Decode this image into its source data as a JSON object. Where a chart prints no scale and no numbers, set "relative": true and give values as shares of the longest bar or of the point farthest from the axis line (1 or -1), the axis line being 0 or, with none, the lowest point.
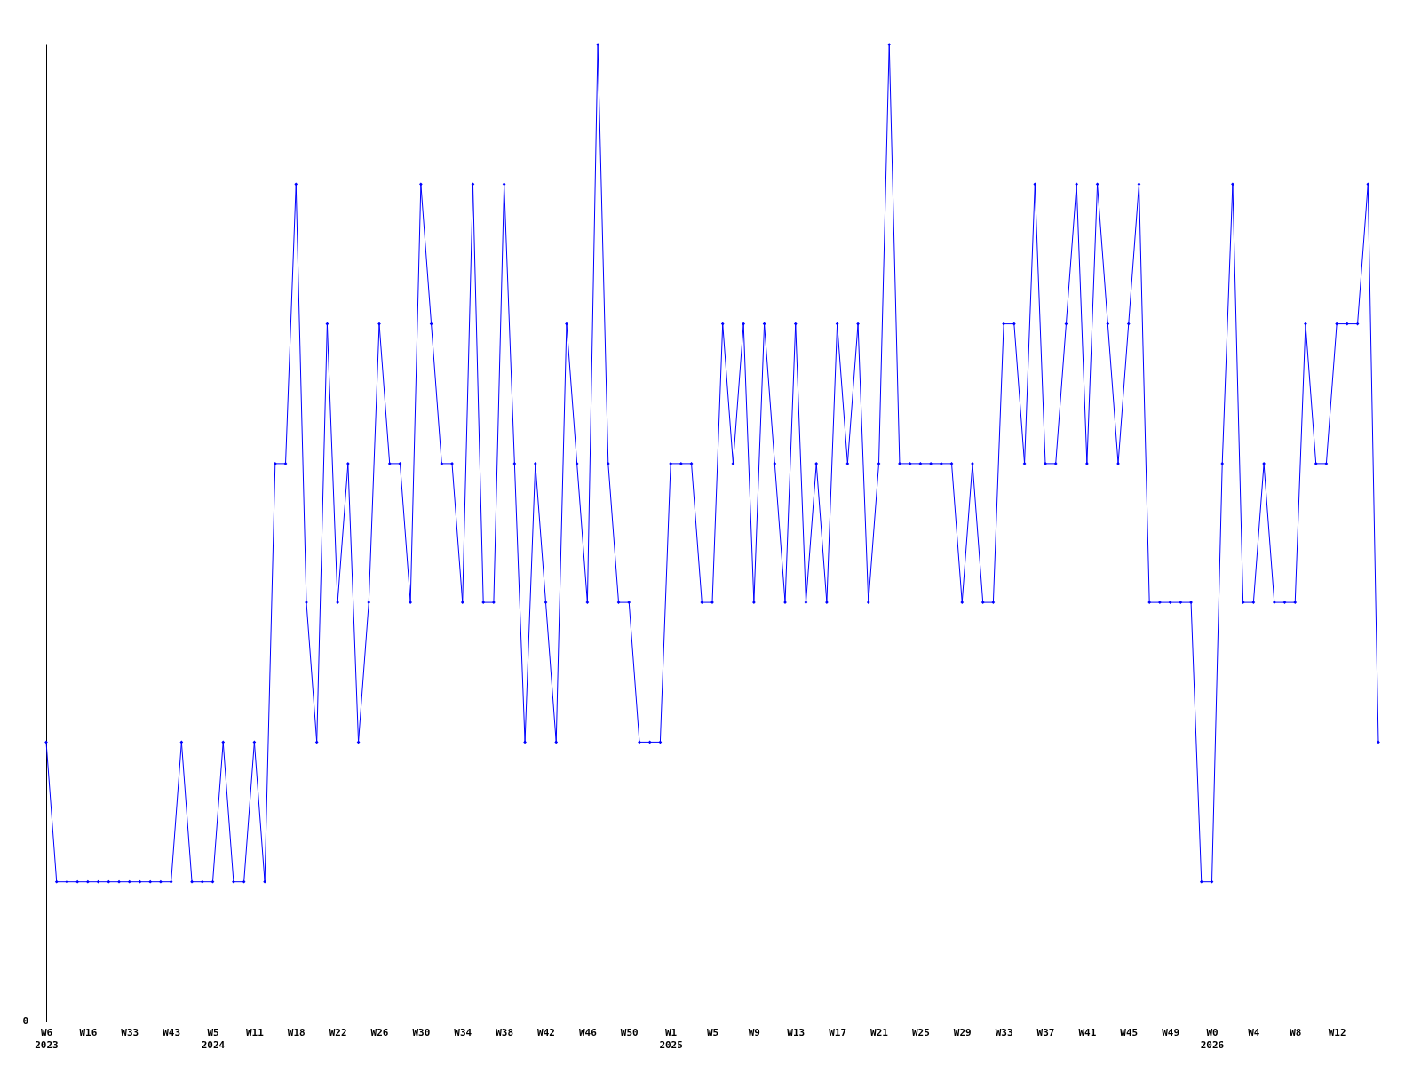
{
  "chart_data": {
    "type": "line",
    "relative": true,
    "color": "#0000ff",
    "marker": "diamond",
    "line_style": "solid",
    "grid": false,
    "annotations": [
      "0"
    ],
    "categories": [
      "W6\n2023",
      null,
      null,
      null,
      "W16",
      null,
      null,
      null,
      "W33",
      null,
      null,
      null,
      "W43",
      null,
      null,
      null,
      "W5\n2024",
      null,
      null,
      null,
      "W11",
      null,
      null,
      null,
      "W18",
      null,
      null,
      null,
      "W22",
      null,
      null,
      null,
      "W26",
      null,
      null,
      null,
      "W30",
      null,
      null,
      null,
      "W34",
      null,
      null,
      null,
      "W38",
      null,
      null,
      null,
      "W42",
      null,
      null,
      null,
      "W46",
      null,
      null,
      null,
      "W50",
      null,
      null,
      null,
      "W1\n2025",
      null,
      null,
      null,
      "W5",
      null,
      null,
      null,
      "W9",
      null,
      null,
      null,
      "W13",
      null,
      null,
      null,
      "W17",
      null,
      null,
      null,
      "W21",
      null,
      null,
      null,
      "W25",
      null,
      null,
      null,
      "W29",
      null,
      null,
      null,
      "W33",
      null,
      null,
      null,
      "W37",
      null,
      null,
      null,
      "W41",
      null,
      null,
      null,
      "W45",
      null,
      null,
      null,
      "W49",
      null,
      null,
      null,
      "W0\n2026",
      null,
      null,
      null,
      "W4",
      null,
      null,
      null,
      "W8",
      null,
      null,
      null,
      "W12",
      null,
      null,
      null,
      null
    ],
    "values": [
      0.286,
      0.143,
      0.143,
      0.143,
      0.143,
      0.143,
      0.143,
      0.143,
      0.143,
      0.143,
      0.143,
      0.143,
      0.143,
      0.286,
      0.143,
      0.143,
      0.143,
      0.286,
      0.143,
      0.143,
      0.286,
      0.143,
      0.571,
      0.571,
      0.857,
      0.429,
      0.286,
      0.714,
      0.429,
      0.571,
      0.286,
      0.429,
      0.714,
      0.571,
      0.571,
      0.429,
      0.857,
      0.714,
      0.571,
      0.571,
      0.429,
      0.857,
      0.429,
      0.429,
      0.857,
      0.571,
      0.286,
      0.571,
      0.429,
      0.286,
      0.714,
      0.571,
      0.429,
      1,
      0.571,
      0.429,
      0.429,
      0.286,
      0.286,
      0.286,
      0.571,
      0.571,
      0.571,
      0.429,
      0.429,
      0.714,
      0.571,
      0.714,
      0.429,
      0.714,
      0.571,
      0.429,
      0.714,
      0.429,
      0.571,
      0.429,
      0.714,
      0.571,
      0.714,
      0.429,
      0.571,
      1,
      0.571,
      0.571,
      0.571,
      0.571,
      0.571,
      0.571,
      0.429,
      0.571,
      0.429,
      0.429,
      0.714,
      0.714,
      0.571,
      0.857,
      0.571,
      0.571,
      0.714,
      0.857,
      0.571,
      0.857,
      0.714,
      0.571,
      0.714,
      0.857,
      0.429,
      0.429,
      0.429,
      0.429,
      0.429,
      0.143,
      0.143,
      0.571,
      0.857,
      0.429,
      0.429,
      0.571,
      0.429,
      0.429,
      0.429,
      0.714,
      0.571,
      0.571,
      0.714,
      0.714,
      0.714,
      0.857,
      0.286
    ]
  }
}
